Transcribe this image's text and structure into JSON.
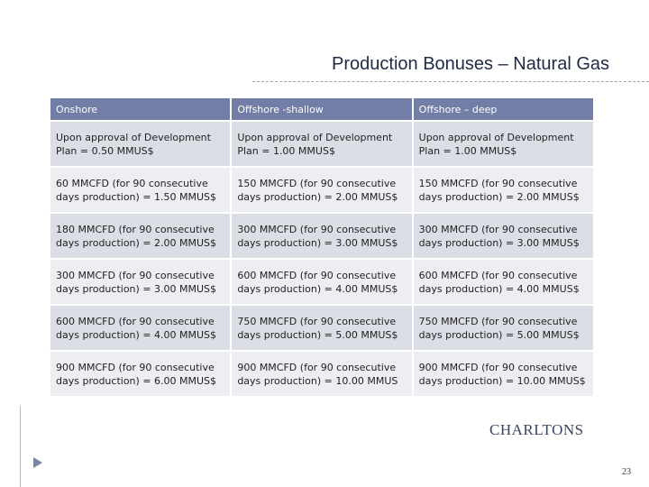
{
  "header": {
    "title": "Production Bonuses – Natural Gas"
  },
  "table": {
    "header": [
      "Onshore",
      "Offshore -shallow",
      "Offshore – deep"
    ],
    "rows": [
      [
        "Upon approval of Development Plan = 0.50 MMUS$",
        "Upon approval of Development Plan = 1.00 MMUS$",
        "Upon approval of Development Plan = 1.00 MMUS$"
      ],
      [
        "60 MMCFD (for 90 consecutive days production) = 1.50 MMUS$",
        "150 MMCFD (for 90 consecutive days production) = 2.00 MMUS$",
        "150 MMCFD (for 90 consecutive days production) = 2.00 MMUS$"
      ],
      [
        "180 MMCFD (for 90 consecutive days production) = 2.00 MMUS$",
        "300 MMCFD (for 90 consecutive days production) = 3.00 MMUS$",
        "300 MMCFD (for 90 consecutive days production) = 3.00 MMUS$"
      ],
      [
        "300 MMCFD (for 90 consecutive days production) = 3.00 MMUS$",
        "600 MMCFD (for 90 consecutive days production) = 4.00 MMUS$",
        "600 MMCFD (for 90 consecutive days production) = 4.00 MMUS$"
      ],
      [
        "600 MMCFD (for 90 consecutive days production) = 4.00 MMUS$",
        "750 MMCFD (for 90 consecutive days production) = 5.00 MMUS$",
        "750 MMCFD (for 90 consecutive days production) = 5.00 MMUS$"
      ],
      [
        "900 MMCFD (for 90 consecutive days production) = 6.00 MMUS$",
        "900 MMCFD (for 90 consecutive days production) = 10.00 MMUS",
        "900 MMCFD (for 90 consecutive days production) = 10.00 MMUS$"
      ]
    ]
  },
  "logo": "CHARLTONS",
  "page_number": "23"
}
